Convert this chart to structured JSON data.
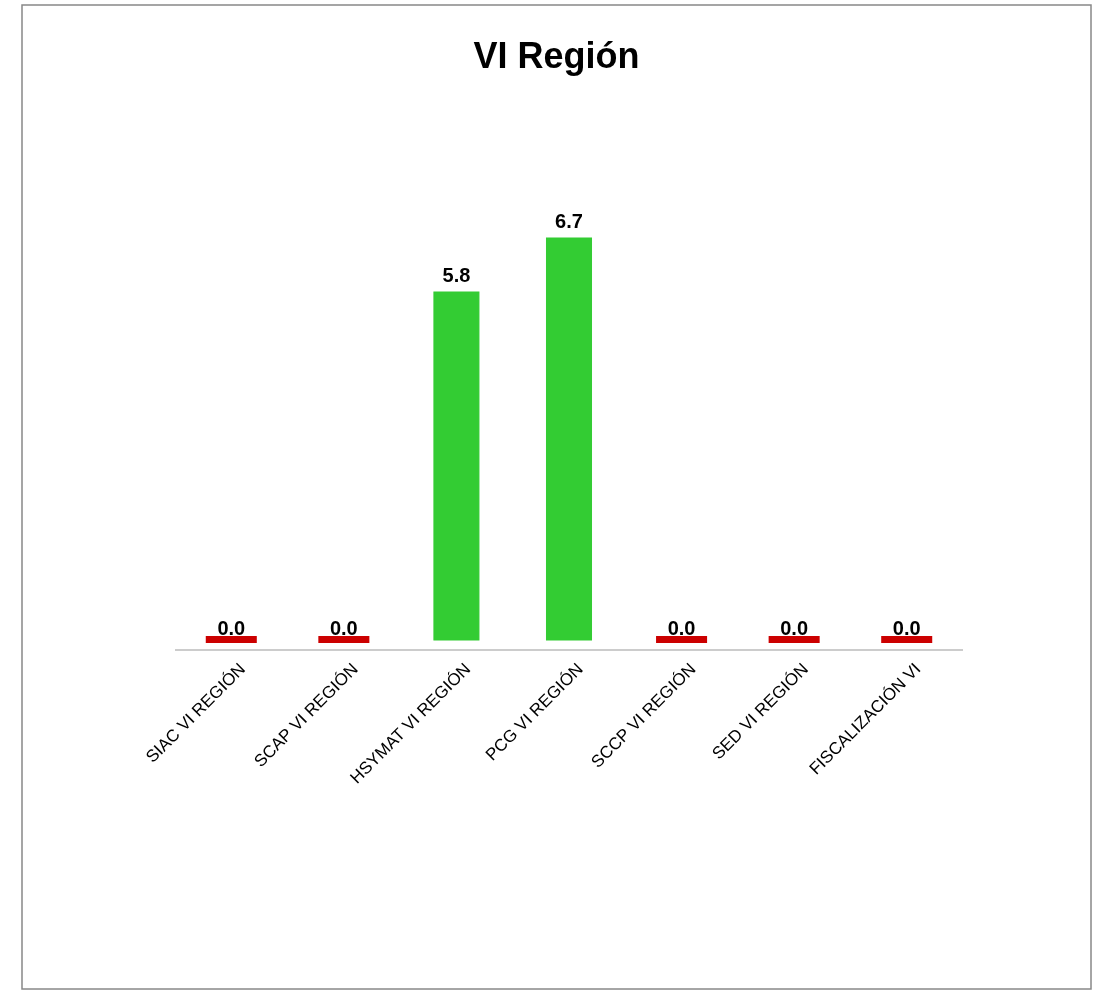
{
  "chart_data": {
    "type": "bar",
    "title": "VI Región",
    "categories": [
      "SIAC VI REGIÓN",
      "SCAP VI REGIÓN",
      "HSYMAT VI REGIÓN",
      "PCG VI REGIÓN",
      "SCCP VI REGIÓN",
      "SED VI REGIÓN",
      "FISCALIZACIÓN VI"
    ],
    "values": [
      0.0,
      0.0,
      5.8,
      6.7,
      0.0,
      0.0,
      0.0
    ],
    "colors": [
      "#cc0000",
      "#cc0000",
      "#33cc33",
      "#33cc33",
      "#cc0000",
      "#cc0000",
      "#cc0000"
    ],
    "value_labels": [
      "0.0",
      "0.0",
      "5.8",
      "6.7",
      "0.0",
      "0.0",
      "0.0"
    ]
  }
}
